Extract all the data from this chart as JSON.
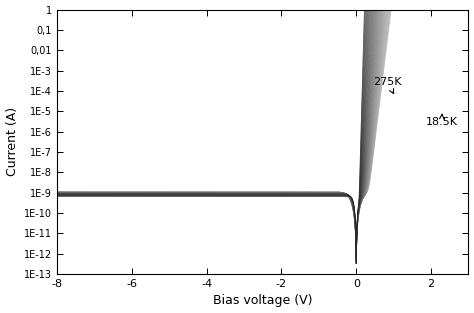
{
  "title": "",
  "xlabel": "Bias voltage (V)",
  "ylabel": "Current (A)",
  "xlim": [
    -8,
    3
  ],
  "ylim_log": [
    1e-13,
    1
  ],
  "xticks": [
    -8,
    -6,
    -4,
    -2,
    0,
    2
  ],
  "ytick_labels": [
    "1E-13",
    "1E-12",
    "1E-11",
    "1E-10",
    "1E-9",
    "1E-8",
    "1E-7",
    "1E-6",
    "1E-5",
    "1E-4",
    "1E-3",
    "0,01",
    "0,1",
    "1"
  ],
  "ytick_values": [
    1e-13,
    1e-12,
    1e-11,
    1e-10,
    1e-09,
    1e-08,
    1e-07,
    1e-06,
    1e-05,
    0.0001,
    0.001,
    0.01,
    0.1,
    1
  ],
  "T_min": 18.5,
  "T_max": 275,
  "n_curves": 35,
  "background_color": "#ffffff"
}
